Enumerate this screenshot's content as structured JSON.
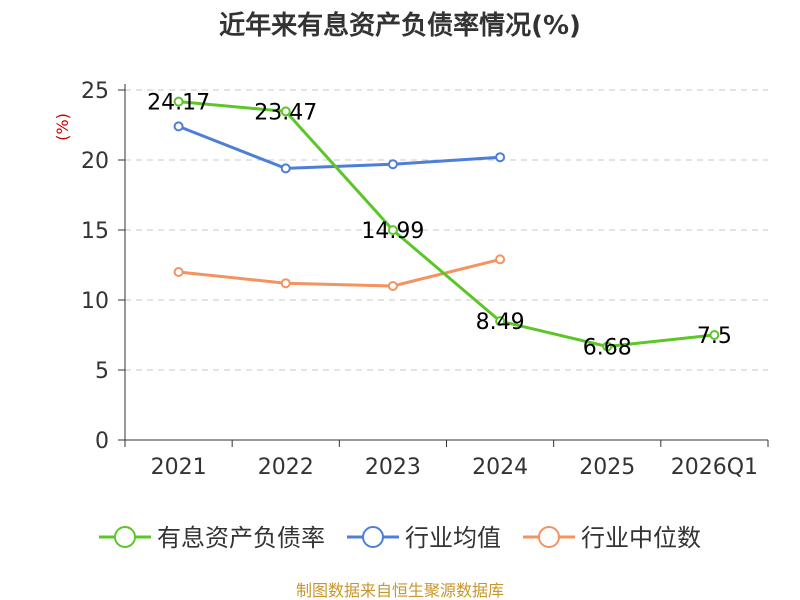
{
  "chart_data": {
    "type": "line",
    "title": "近年来有息资产负债率情况(%)",
    "ylabel": "(%)",
    "categories": [
      "2021",
      "2022",
      "2023",
      "2024",
      "2025",
      "2026Q1"
    ],
    "ylim": [
      0,
      25
    ],
    "yticks": [
      "0",
      "5",
      "10",
      "15",
      "20",
      "25"
    ],
    "grid": true,
    "legend_position": "bottom",
    "series": [
      {
        "name": "有息资产负债率",
        "color": "#5cc628",
        "values": [
          24.17,
          23.47,
          14.99,
          8.49,
          6.68,
          7.5
        ],
        "labels": [
          "24.17",
          "23.47",
          "14.99",
          "8.49",
          "6.68",
          "7.5"
        ]
      },
      {
        "name": "行业均值",
        "color": "#4e7fd8",
        "values": [
          22.4,
          19.4,
          19.7,
          20.2,
          null,
          null
        ]
      },
      {
        "name": "行业中位数",
        "color": "#f39360",
        "values": [
          12.0,
          11.2,
          11.0,
          12.9,
          null,
          null
        ]
      }
    ],
    "ylabel_color": "#cc0000"
  },
  "source": {
    "text": "制图数据来自恒生聚源数据库",
    "color": "#c8962b"
  }
}
